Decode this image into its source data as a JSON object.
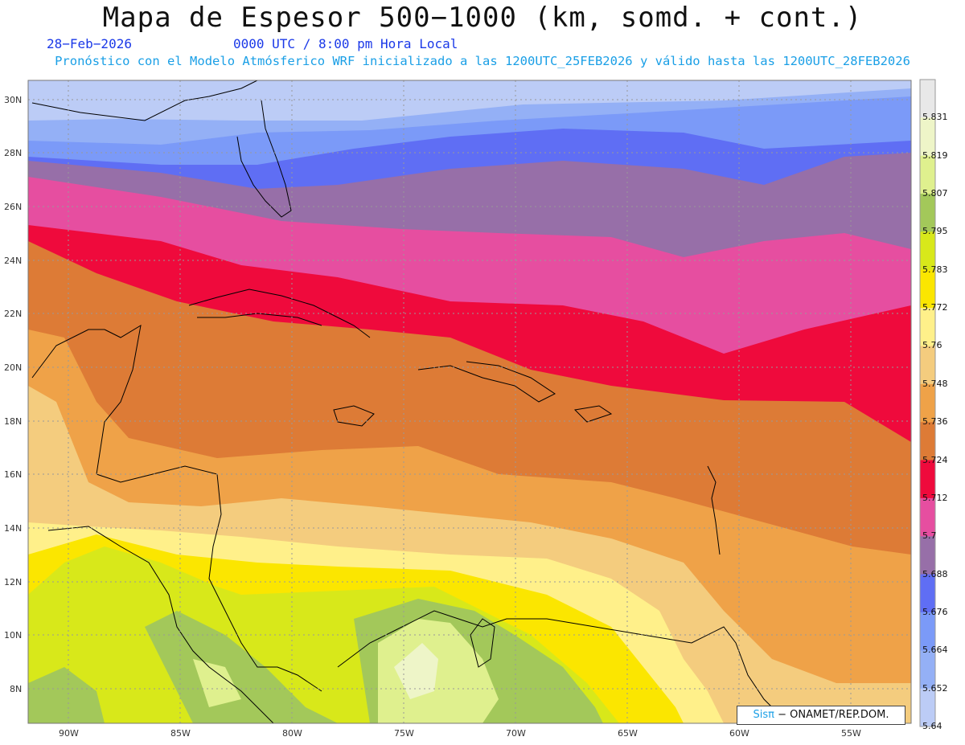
{
  "title": "Mapa de Espesor 500−1000 (km, somd. + cont.)",
  "date_line": "28−Feb−2026",
  "time_line": "0000 UTC / 8:00 pm Hora Local",
  "model_line": "Pronóstico con el Modelo Atmósferico WRF inicializado a las 1200UTC_25FEB2026 y válido hasta las  1200UTC_28FEB2026",
  "lat_labels": [
    "30N",
    "28N",
    "26N",
    "24N",
    "22N",
    "20N",
    "18N",
    "16N",
    "14N",
    "12N",
    "10N",
    "8N"
  ],
  "lon_labels": [
    "90W",
    "85W",
    "80W",
    "75W",
    "70W",
    "65W",
    "60W",
    "55W"
  ],
  "colorbar": {
    "labels": [
      "5.831",
      "5.819",
      "5.807",
      "5.795",
      "5.783",
      "5.772",
      "5.76",
      "5.748",
      "5.736",
      "5.724",
      "5.712",
      "5.7",
      "5.688",
      "5.676",
      "5.664",
      "5.652",
      "5.64"
    ],
    "colors": [
      "#e8e8e8",
      "#eef5c8",
      "#dff08e",
      "#a3c85a",
      "#d8e81a",
      "#fbe600",
      "#fff08a",
      "#f4cc7e",
      "#efa248",
      "#dd7b36",
      "#ef0a3c",
      "#e64ea0",
      "#976fa8",
      "#5f6ef4",
      "#7b9af8",
      "#94b0f6",
      "#bcccf6"
    ]
  },
  "credit": {
    "sis": "Sisπ",
    "rest": "− ONAMET/REP.DOM."
  }
}
